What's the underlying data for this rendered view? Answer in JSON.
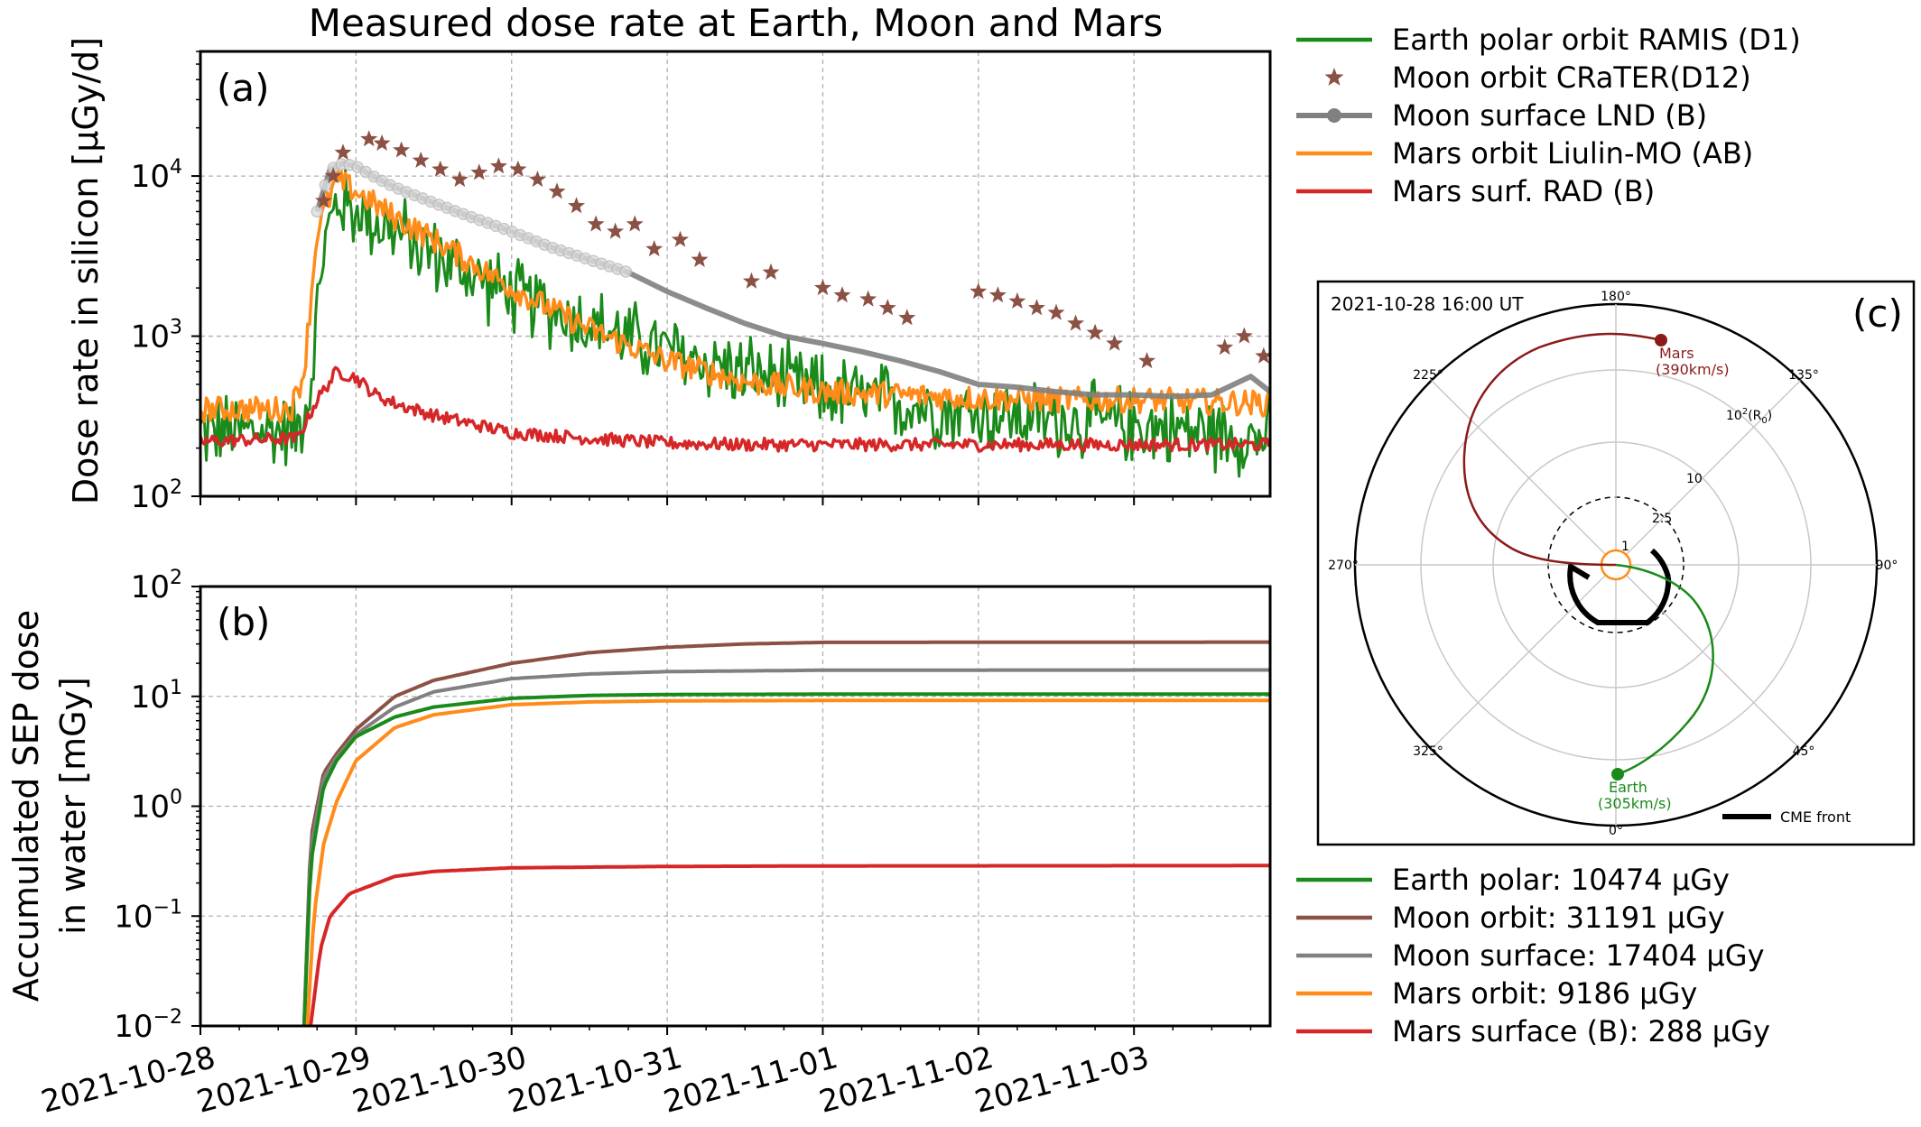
{
  "colors": {
    "earth": "#1a8a1a",
    "moon_orbit": "#8c5145",
    "moon_surface": "#808080",
    "mars_orbit": "#ff8c1a",
    "mars_surface": "#d62728"
  },
  "chart_data": [
    {
      "type": "line",
      "panel": "(a)",
      "title": "Measured dose rate at Earth, Moon and Mars",
      "xlabel": "",
      "ylabel": "Dose rate in silicon [μGy/d]",
      "yscale": "log",
      "ylim": [
        100,
        60000
      ],
      "xlim": [
        "2021-10-28",
        "2021-11-03T21:00"
      ],
      "grid": true,
      "legend_position": "outside-right",
      "x_ticks": [
        "2021-10-28",
        "2021-10-29",
        "2021-10-30",
        "2021-10-31",
        "2021-11-01",
        "2021-11-02",
        "2021-11-03"
      ],
      "y_ticks": [
        {
          "base": "10",
          "exp": "2"
        },
        {
          "base": "10",
          "exp": "3"
        },
        {
          "base": "10",
          "exp": "4"
        }
      ],
      "series": [
        {
          "key": "earth",
          "name": "Earth polar orbit RAMIS (D1)",
          "style": "line-noisy",
          "x": [
            "2021-10-28T00:00",
            "2021-10-28T15:00",
            "2021-10-28T17:00",
            "2021-10-28T19:00",
            "2021-10-28T21:00",
            "2021-10-29T00:00",
            "2021-10-29T06:00",
            "2021-10-29T12:00",
            "2021-10-30T00:00",
            "2021-10-30T12:00",
            "2021-10-31T00:00",
            "2021-10-31T12:00",
            "2021-11-01T00:00",
            "2021-11-01T12:00",
            "2021-11-02T00:00",
            "2021-11-02T12:00",
            "2021-11-03T00:00",
            "2021-11-03T12:00",
            "2021-11-03T21:00"
          ],
          "y": [
            250,
            260,
            500,
            3500,
            7000,
            6000,
            4500,
            3200,
            1800,
            1200,
            800,
            600,
            450,
            380,
            330,
            300,
            280,
            250,
            230
          ]
        },
        {
          "key": "moon_orbit",
          "name": "Moon orbit CRaTER(D12)",
          "style": "star",
          "x": [
            "2021-10-28T19:00",
            "2021-10-28T20:30",
            "2021-10-28T22:00",
            "2021-10-29T02:00",
            "2021-10-29T04:00",
            "2021-10-29T07:00",
            "2021-10-29T10:00",
            "2021-10-29T13:00",
            "2021-10-29T16:00",
            "2021-10-29T19:00",
            "2021-10-29T22:00",
            "2021-10-30T01:00",
            "2021-10-30T04:00",
            "2021-10-30T07:00",
            "2021-10-30T10:00",
            "2021-10-30T13:00",
            "2021-10-30T16:00",
            "2021-10-30T19:00",
            "2021-10-30T22:00",
            "2021-10-31T02:00",
            "2021-10-31T05:00",
            "2021-10-31T13:00",
            "2021-10-31T16:00",
            "2021-11-01T00:00",
            "2021-11-01T03:00",
            "2021-11-01T07:00",
            "2021-11-01T10:00",
            "2021-11-01T13:00",
            "2021-11-02T00:00",
            "2021-11-02T03:00",
            "2021-11-02T06:00",
            "2021-11-02T09:00",
            "2021-11-02T12:00",
            "2021-11-02T15:00",
            "2021-11-02T18:00",
            "2021-11-02T21:00",
            "2021-11-03T02:00",
            "2021-11-03T14:00",
            "2021-11-03T17:00",
            "2021-11-03T20:00"
          ],
          "y": [
            7000,
            10000,
            14000,
            17000,
            16000,
            14500,
            12500,
            11000,
            9500,
            10500,
            11500,
            11000,
            9500,
            8000,
            6500,
            5000,
            4500,
            5000,
            3500,
            4000,
            3000,
            2200,
            2500,
            2000,
            1800,
            1700,
            1500,
            1300,
            1900,
            1800,
            1650,
            1500,
            1400,
            1200,
            1050,
            900,
            700,
            850,
            1000,
            750
          ]
        },
        {
          "key": "moon_surface",
          "name": "Moon surface LND (B)",
          "style": "line-marker",
          "x": [
            "2021-10-28T18:00",
            "2021-10-28T20:00",
            "2021-10-28T22:00",
            "2021-10-29T00:00",
            "2021-10-29T03:00",
            "2021-10-29T06:00",
            "2021-10-29T12:00",
            "2021-10-29T18:00",
            "2021-10-30T00:00",
            "2021-10-30T06:00",
            "2021-10-30T12:00",
            "2021-10-30T18:00",
            "2021-10-31T00:00",
            "2021-10-31T06:00",
            "2021-10-31T12:00",
            "2021-10-31T18:00",
            "2021-11-01T00:00",
            "2021-11-01T06:00",
            "2021-11-01T12:00",
            "2021-11-01T18:00",
            "2021-11-02T00:00",
            "2021-11-02T06:00",
            "2021-11-02T12:00",
            "2021-11-02T18:00",
            "2021-11-03T00:00",
            "2021-11-03T06:00",
            "2021-11-03T12:00",
            "2021-11-03T18:00",
            "2021-11-03T21:00"
          ],
          "y": [
            6000,
            11000,
            12000,
            11500,
            9800,
            8500,
            6800,
            5500,
            4500,
            3600,
            3000,
            2500,
            1900,
            1500,
            1200,
            1000,
            900,
            800,
            700,
            600,
            500,
            480,
            450,
            430,
            430,
            420,
            430,
            560,
            450
          ]
        },
        {
          "key": "mars_orbit",
          "name": "Mars orbit Liulin-MO (AB)",
          "style": "line-noisy",
          "x": [
            "2021-10-28T00:00",
            "2021-10-28T14:00",
            "2021-10-28T16:00",
            "2021-10-28T18:00",
            "2021-10-28T21:00",
            "2021-10-29T00:00",
            "2021-10-29T06:00",
            "2021-10-29T12:00",
            "2021-10-30T00:00",
            "2021-10-30T12:00",
            "2021-10-31T00:00",
            "2021-10-31T12:00",
            "2021-11-01T00:00",
            "2021-11-01T12:00",
            "2021-11-02T00:00",
            "2021-11-02T12:00",
            "2021-11-03T00:00",
            "2021-11-03T12:00",
            "2021-11-03T21:00"
          ],
          "y": [
            350,
            350,
            600,
            4500,
            9500,
            8000,
            5500,
            4000,
            2000,
            1100,
            700,
            520,
            450,
            430,
            410,
            400,
            400,
            390,
            380
          ]
        },
        {
          "key": "mars_surface",
          "name": "Mars surf. RAD (B)",
          "style": "line-noisy",
          "x": [
            "2021-10-28T00:00",
            "2021-10-28T15:00",
            "2021-10-28T18:00",
            "2021-10-28T21:00",
            "2021-10-29T00:00",
            "2021-10-29T03:00",
            "2021-10-29T06:00",
            "2021-10-29T12:00",
            "2021-10-30T00:00",
            "2021-10-30T12:00",
            "2021-10-31T00:00",
            "2021-10-31T12:00",
            "2021-11-01T00:00",
            "2021-11-01T12:00",
            "2021-11-02T00:00",
            "2021-11-02T12:00",
            "2021-11-03T00:00",
            "2021-11-03T12:00",
            "2021-11-03T21:00"
          ],
          "y": [
            220,
            230,
            400,
            600,
            550,
            430,
            380,
            320,
            250,
            230,
            215,
            210,
            210,
            210,
            210,
            210,
            210,
            210,
            210
          ]
        }
      ]
    },
    {
      "type": "line",
      "panel": "(b)",
      "title": "",
      "xlabel": "",
      "ylabel": "Accumulated SEP dose in water [mGy]",
      "ylabel_lines": [
        "Accumulated SEP dose",
        "in water [mGy]"
      ],
      "yscale": "log",
      "ylim": [
        0.01,
        100
      ],
      "xlim": [
        "2021-10-28",
        "2021-11-03T21:00"
      ],
      "grid": true,
      "legend_position": "outside-right",
      "x_ticks": [
        "2021-10-28",
        "2021-10-29",
        "2021-10-30",
        "2021-10-31",
        "2021-11-01",
        "2021-11-02",
        "2021-11-03"
      ],
      "y_ticks": [
        {
          "base": "10",
          "exp": "−2"
        },
        {
          "base": "10",
          "exp": "−1"
        },
        {
          "base": "10",
          "exp": "0"
        },
        {
          "base": "10",
          "exp": "1"
        },
        {
          "base": "10",
          "exp": "2"
        }
      ],
      "series": [
        {
          "key": "earth",
          "name": "Earth polar: 10474 μGy",
          "x": [
            "2021-10-28T16:00",
            "2021-10-28T17:00",
            "2021-10-28T19:00",
            "2021-10-28T21:00",
            "2021-10-29T00:00",
            "2021-10-29T06:00",
            "2021-10-29T12:00",
            "2021-10-30T00:00",
            "2021-10-30T12:00",
            "2021-10-31T00:00",
            "2021-11-01T00:00",
            "2021-11-03T21:00"
          ],
          "y": [
            0.01,
            0.3,
            1.5,
            2.6,
            4.3,
            6.5,
            8.0,
            9.6,
            10.2,
            10.4,
            10.47,
            10.474
          ]
        },
        {
          "key": "moon_orbit",
          "name": "Moon orbit: 31191 μGy",
          "x": [
            "2021-10-28T16:00",
            "2021-10-28T17:00",
            "2021-10-28T19:00",
            "2021-10-28T21:00",
            "2021-10-29T00:00",
            "2021-10-29T06:00",
            "2021-10-29T12:00",
            "2021-10-30T00:00",
            "2021-10-30T12:00",
            "2021-10-31T00:00",
            "2021-10-31T12:00",
            "2021-11-01T00:00",
            "2021-11-03T21:00"
          ],
          "y": [
            0.01,
            0.5,
            2.0,
            3.0,
            5.0,
            10.0,
            14.0,
            20.0,
            25.0,
            28.0,
            30.0,
            31.0,
            31.191
          ]
        },
        {
          "key": "moon_surface",
          "name": "Moon surface: 17404 μGy",
          "x": [
            "2021-10-28T16:00",
            "2021-10-28T17:00",
            "2021-10-28T19:00",
            "2021-10-28T21:00",
            "2021-10-29T00:00",
            "2021-10-29T06:00",
            "2021-10-29T12:00",
            "2021-10-30T00:00",
            "2021-10-30T12:00",
            "2021-10-31T00:00",
            "2021-11-01T00:00",
            "2021-11-03T21:00"
          ],
          "y": [
            0.01,
            0.4,
            1.8,
            2.8,
            4.5,
            8.0,
            11.0,
            14.5,
            16.0,
            16.8,
            17.3,
            17.404
          ]
        },
        {
          "key": "mars_orbit",
          "name": "Mars orbit: 9186 μGy",
          "x": [
            "2021-10-28T16:30",
            "2021-10-28T17:30",
            "2021-10-28T19:00",
            "2021-10-28T21:00",
            "2021-10-29T00:00",
            "2021-10-29T06:00",
            "2021-10-29T12:00",
            "2021-10-30T00:00",
            "2021-10-30T12:00",
            "2021-10-31T00:00",
            "2021-11-01T00:00",
            "2021-11-03T21:00"
          ],
          "y": [
            0.01,
            0.1,
            0.45,
            1.1,
            2.6,
            5.2,
            6.8,
            8.4,
            8.9,
            9.1,
            9.17,
            9.186
          ]
        },
        {
          "key": "mars_surface",
          "name": "Mars surface (B): 288 μGy",
          "x": [
            "2021-10-28T17:00",
            "2021-10-28T18:30",
            "2021-10-28T20:00",
            "2021-10-28T23:00",
            "2021-10-29T06:00",
            "2021-10-29T12:00",
            "2021-10-30T00:00",
            "2021-10-31T00:00",
            "2021-11-01T00:00",
            "2021-11-03T21:00"
          ],
          "y": [
            0.01,
            0.05,
            0.1,
            0.16,
            0.23,
            0.255,
            0.275,
            0.283,
            0.286,
            0.288
          ]
        }
      ]
    },
    {
      "type": "diagram",
      "panel": "(c)",
      "timestamp": "2021-10-28 16:00 UT",
      "angle_labels": {
        "a180": "180°",
        "a135": "135°",
        "a90": "90°",
        "a45": "45°",
        "a0": "0°",
        "a325": "325°",
        "a270": "270°",
        "a225": "225°"
      },
      "radius_labels": {
        "r1": "1",
        "r25": "2.5",
        "r10": "10",
        "r100_base": "10",
        "r100_exp": "2",
        "r100_unit_open": "(R",
        "r100_unit_sub": "0",
        "r100_unit_close": ")"
      },
      "mars_label": "Mars",
      "mars_speed": "(390km/s)",
      "earth_label": "Earth",
      "earth_speed": "(305km/s)",
      "cme_label": "CME front"
    }
  ]
}
